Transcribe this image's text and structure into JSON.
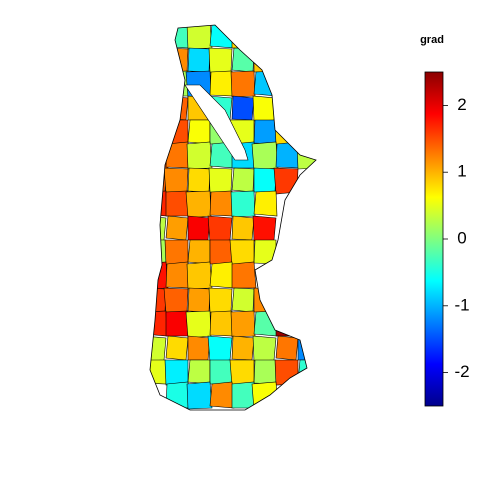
{
  "map": {
    "regions": {
      "values": [
        [
          null,
          -0.3,
          0.4,
          -0.6,
          0.8,
          null,
          null,
          null
        ],
        [
          null,
          1.2,
          -0.8,
          0.5,
          -0.2,
          0.9,
          null,
          null
        ],
        [
          null,
          0.2,
          -1.2,
          0.7,
          1.3,
          -0.9,
          0.4,
          null
        ],
        [
          null,
          1.4,
          0.9,
          -0.4,
          -1.5,
          0.6,
          -0.7,
          null
        ],
        [
          1.1,
          1.5,
          0.6,
          0.1,
          0.5,
          -1.1,
          0.8,
          null
        ],
        [
          1.5,
          1.3,
          0.4,
          -0.3,
          -0.8,
          0.2,
          -1.0,
          0.3
        ],
        [
          1.4,
          1.2,
          0.8,
          0.5,
          0.3,
          -0.6,
          1.6,
          null
        ],
        [
          1.7,
          1.5,
          1.0,
          1.2,
          -0.4,
          0.7,
          null,
          null
        ],
        [
          0.3,
          1.1,
          1.9,
          1.6,
          0.9,
          1.8,
          null,
          null
        ],
        [
          0.2,
          1.3,
          1.0,
          1.4,
          0.8,
          0.5,
          null,
          null
        ],
        [
          1.8,
          1.2,
          0.9,
          0.7,
          1.3,
          null,
          null,
          null
        ],
        [
          1.6,
          1.4,
          1.1,
          0.8,
          0.4,
          1.2,
          null,
          null
        ],
        [
          1.7,
          1.9,
          0.5,
          0.9,
          1.1,
          -0.2,
          2.4,
          null
        ],
        [
          0.4,
          0.8,
          1.2,
          -0.6,
          1.0,
          0.3,
          1.3,
          -1.2
        ],
        [
          0.5,
          -0.7,
          0.3,
          -0.3,
          0.8,
          0.2,
          1.5,
          -0.4
        ],
        [
          null,
          -0.5,
          -0.8,
          1.2,
          -0.3,
          0.6,
          null,
          null
        ]
      ]
    },
    "legend": {
      "title": "grad",
      "lim": [
        -2.5,
        2.5
      ],
      "ticks": [
        -2,
        -1,
        0,
        1,
        2
      ],
      "colors": [
        "#00008b",
        "#0000ff",
        "#0080ff",
        "#00ffff",
        "#80ff80",
        "#ffff00",
        "#ff8000",
        "#ff0000",
        "#8b0000"
      ]
    }
  }
}
